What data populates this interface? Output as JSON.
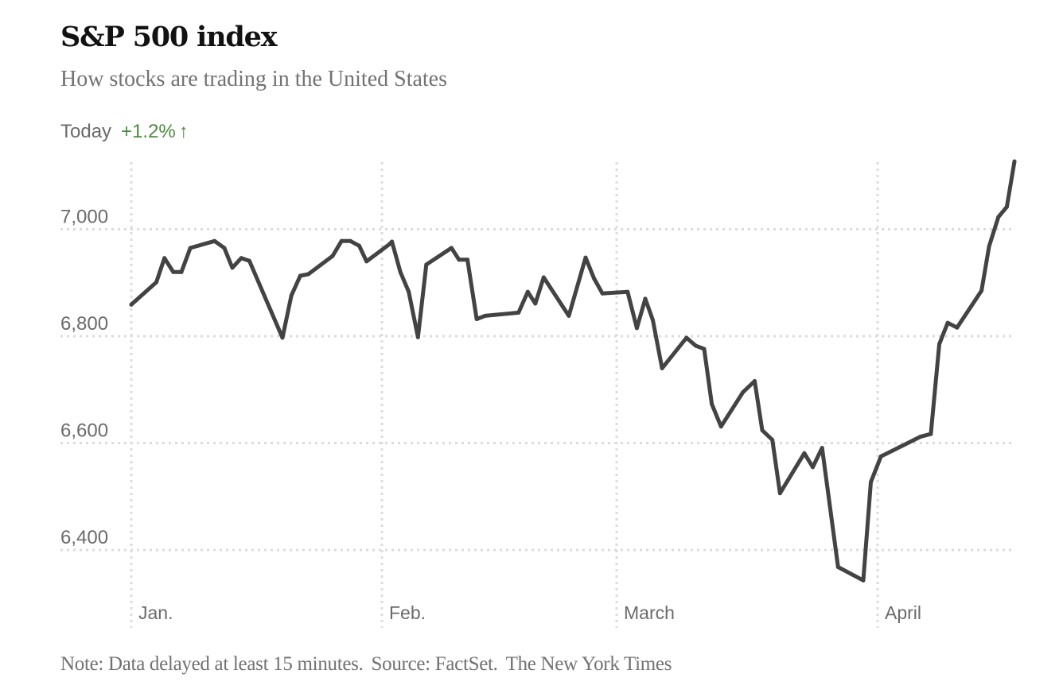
{
  "header": {
    "title": "S&P 500 index",
    "subtitle": "How stocks are trading in the United States",
    "today_label": "Today",
    "today_change": "+1.2%",
    "today_arrow": "↑"
  },
  "footer": {
    "note": "Note: Data delayed at least 15 minutes.",
    "source": "Source: FactSet.",
    "credit": "The New York Times"
  },
  "colors": {
    "line": "#434343",
    "gain": "#4e8a3e",
    "grid": "#dcdcdc",
    "text": "#6b6b6b"
  },
  "chart_data": {
    "type": "line",
    "title": "S&P 500 index",
    "subtitle": "How stocks are trading in the United States",
    "xlabel": "",
    "ylabel": "",
    "x_unit": "days since Jan. 1",
    "xlim": [
      0,
      106.2
    ],
    "ylim": [
      6310,
      7140
    ],
    "grid": true,
    "yticks": [
      {
        "value": 7000,
        "label": "7,000"
      },
      {
        "value": 6800,
        "label": "6,800"
      },
      {
        "value": 6600,
        "label": "6,600"
      },
      {
        "value": 6400,
        "label": "6,400"
      }
    ],
    "xticks": [
      {
        "value": 0,
        "label": "Jan."
      },
      {
        "value": 31,
        "label": "Feb."
      },
      {
        "value": 59,
        "label": "March"
      },
      {
        "value": 90,
        "label": "April"
      }
    ],
    "series": [
      {
        "name": "S&P 500",
        "x": [
          0,
          3.1,
          4.1,
          5.2,
          6.2,
          7.3,
          10.3,
          11.5,
          12.5,
          13.6,
          14.6,
          18.7,
          19.8,
          20.9,
          21.9,
          24.9,
          26.0,
          27.1,
          28.2,
          29.1,
          31.9,
          32.2,
          33.2,
          34.2,
          35.3,
          36.3,
          39.3,
          40.2,
          41.2,
          42.3,
          43.3,
          47.3,
          48.4,
          49.3,
          50.3,
          53.3,
          55.3,
          56.3,
          57.3,
          60.3,
          61.4,
          62.4,
          63.3,
          64.4,
          67.3,
          68.4,
          69.4,
          70.3,
          71.4,
          74.0,
          75.4,
          76.3,
          77.5,
          78.4,
          81.3,
          82.3,
          83.4,
          85.3,
          88.3,
          89.2,
          90.4,
          95.1,
          96.3,
          97.3,
          98.3,
          99.4,
          102.3,
          103.2,
          104.3,
          105.3,
          106.2
        ],
        "y": [
          6859,
          6901,
          6946,
          6920,
          6920,
          6965,
          6978,
          6965,
          6928,
          6946,
          6941,
          6797,
          6876,
          6913,
          6916,
          6950,
          6978,
          6978,
          6969,
          6940,
          6972,
          6977,
          6920,
          6883,
          6798,
          6934,
          6965,
          6943,
          6943,
          6832,
          6838,
          6844,
          6883,
          6861,
          6910,
          6838,
          6947,
          6908,
          6880,
          6883,
          6815,
          6870,
          6830,
          6740,
          6797,
          6782,
          6776,
          6673,
          6631,
          6695,
          6716,
          6624,
          6606,
          6506,
          6581,
          6555,
          6591,
          6368,
          6343,
          6527,
          6575,
          6612,
          6617,
          6785,
          6825,
          6816,
          6885,
          6968,
          7023,
          7042,
          7127
        ]
      }
    ]
  }
}
